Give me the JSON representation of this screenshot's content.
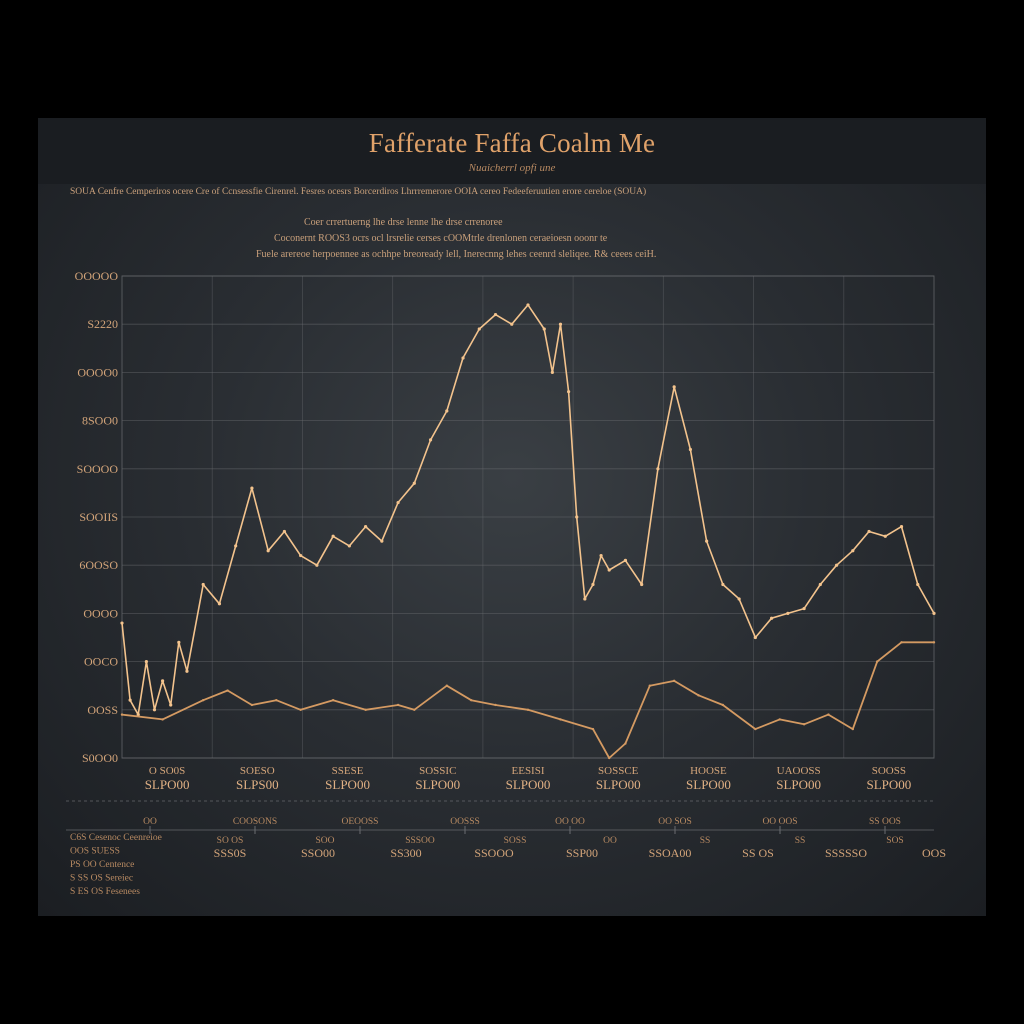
{
  "title": "Fafferate Faffa Coalm Me",
  "subtitle": "Nuaicherrl opfi une",
  "header_row": "SOUA Cenfre Cemperiros ocere Cre of Ccnsessfie Cirenrel.    Fesres ocesrs    Borcerdiros Lhrrremerore OOIA cereo Fedeeferuutien erore cereloe (SOUA)",
  "description_lines": [
    "Coer crrertuerng lhe drse lenne lhe drse crrenoree",
    "Coconernt ROOS3 ocrs ocl lrsrelie cerses cOOMtrle drenlonen ceraeioesn ooonr te",
    "Fuele arereoe herpoennee as ochhpe breoready lell, Inerecnng lehes ceenrd sleliqee. R& ceees ceiH."
  ],
  "colors": {
    "background": "#000000",
    "panel": "#2a2e33",
    "accent": "#e0a26a",
    "series_main": "#f3c38d",
    "series_secondary": "#d49a62",
    "grid": "#6a6c70"
  },
  "chart_data": {
    "type": "line",
    "grid": true,
    "ylim": [
      0,
      10
    ],
    "xlim": [
      0,
      100
    ],
    "y_tick_labels": [
      "S0OO0",
      "OOSS",
      "OOCO",
      "OOOO",
      "6OOSO",
      "SOOIIS",
      "SOOOO",
      "8SOO0",
      "OOOO0",
      "S2220",
      "OOOOO"
    ],
    "x_tick_labels_top": [
      "O SO0S",
      "SOESO",
      "SSESE",
      "SOSSIC",
      "EESISI",
      "SOSSCE",
      "HOOSE",
      "UAOOSS",
      "SOOSS"
    ],
    "x_tick_labels_bottom": [
      "SLPO00",
      "SLPS00",
      "SLPO00",
      "SLPO00",
      "SLPO00",
      "SLPO00",
      "SLPO00",
      "SLPO00",
      "SLPO00"
    ],
    "series": [
      {
        "x": [
          0,
          1,
          2,
          3,
          4,
          5,
          6,
          7,
          8,
          10,
          12,
          14,
          16,
          18,
          20,
          22,
          24,
          26,
          28,
          30,
          32,
          34,
          36,
          38,
          40,
          42,
          44,
          46,
          48,
          50,
          52,
          53,
          54,
          55,
          56,
          57,
          58,
          59,
          60,
          62,
          64,
          66,
          68,
          70,
          72,
          74,
          76,
          78,
          80,
          82,
          84,
          86,
          88,
          90,
          92,
          94,
          96,
          98,
          100
        ],
        "y": [
          2.8,
          1.2,
          0.9,
          2.0,
          1.0,
          1.6,
          1.1,
          2.4,
          1.8,
          3.6,
          3.2,
          4.4,
          5.6,
          4.3,
          4.7,
          4.2,
          4.0,
          4.6,
          4.4,
          4.8,
          4.5,
          5.3,
          5.7,
          6.6,
          7.2,
          8.3,
          8.9,
          9.2,
          9.0,
          9.4,
          8.9,
          8.0,
          9.0,
          7.6,
          5.0,
          3.3,
          3.6,
          4.2,
          3.9,
          4.1,
          3.6,
          6.0,
          7.7,
          6.4,
          4.5,
          3.6,
          3.3,
          2.5,
          2.9,
          3.0,
          3.1,
          3.6,
          4.0,
          4.3,
          4.7,
          4.6,
          4.8,
          3.6,
          3.0
        ]
      },
      {
        "x": [
          0,
          5,
          10,
          13,
          16,
          19,
          22,
          26,
          30,
          34,
          36,
          40,
          43,
          46,
          50,
          54,
          58,
          60,
          62,
          65,
          68,
          71,
          74,
          78,
          81,
          84,
          87,
          90,
          93,
          96,
          100
        ],
        "y": [
          0.9,
          0.8,
          1.2,
          1.4,
          1.1,
          1.2,
          1.0,
          1.2,
          1.0,
          1.1,
          1.0,
          1.5,
          1.2,
          1.1,
          1.0,
          0.8,
          0.6,
          0.0,
          0.3,
          1.5,
          1.6,
          1.3,
          1.1,
          0.6,
          0.8,
          0.7,
          0.9,
          0.6,
          2.0,
          2.4,
          2.4
        ]
      }
    ]
  },
  "footer": {
    "left_lines": [
      "C6S Cesenoc Ceenreioe",
      "OOS SUESS",
      "PS OO Centence",
      "S SS OS Sereiec",
      "S ES OS Fesenees"
    ],
    "ticks_top": [
      "OO",
      "COOSONS",
      "OEOOSS",
      "OOSSS",
      "OO OO",
      "OO SOS",
      "OO OOS",
      "SS OOS"
    ],
    "ticks_mid": [
      "SO OS",
      "SOO",
      "SSSOO",
      "SOSS",
      "OO",
      "SS",
      "SS",
      "SOS"
    ],
    "values": [
      "SSS0S",
      "SSO00",
      "SS300",
      "SSOOO",
      "SSP00",
      "SSOA00",
      "SS OS",
      "SSSSSO",
      "OOS"
    ]
  }
}
